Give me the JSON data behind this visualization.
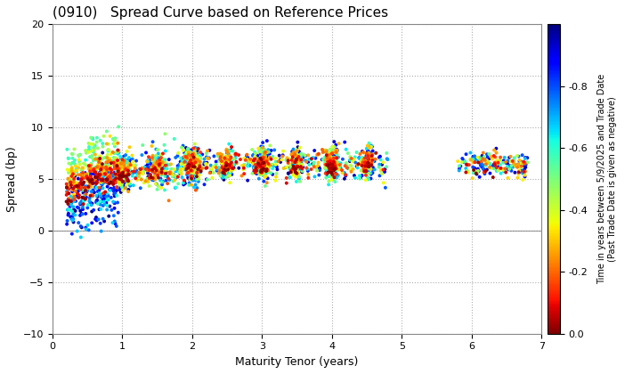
{
  "title": "(0910)   Spread Curve based on Reference Prices",
  "xlabel": "Maturity Tenor (years)",
  "ylabel": "Spread (bp)",
  "colorbar_label": "Time in years between 5/9/2025 and Trade Date\n(Past Trade Date is given as negative)",
  "colorbar_ticks": [
    0.0,
    -0.2,
    -0.4,
    -0.6,
    -0.8
  ],
  "xlim": [
    0,
    7
  ],
  "ylim": [
    -10,
    20
  ],
  "yticks": [
    -10,
    -5,
    0,
    5,
    10,
    15,
    20
  ],
  "xticks": [
    0,
    1,
    2,
    3,
    4,
    5,
    6,
    7
  ],
  "cmap": "jet",
  "vmin": -1.0,
  "vmax": 0.0,
  "background_color": "#ffffff",
  "grid_color": "#b0b0b0",
  "point_size": 8,
  "seed": 42
}
